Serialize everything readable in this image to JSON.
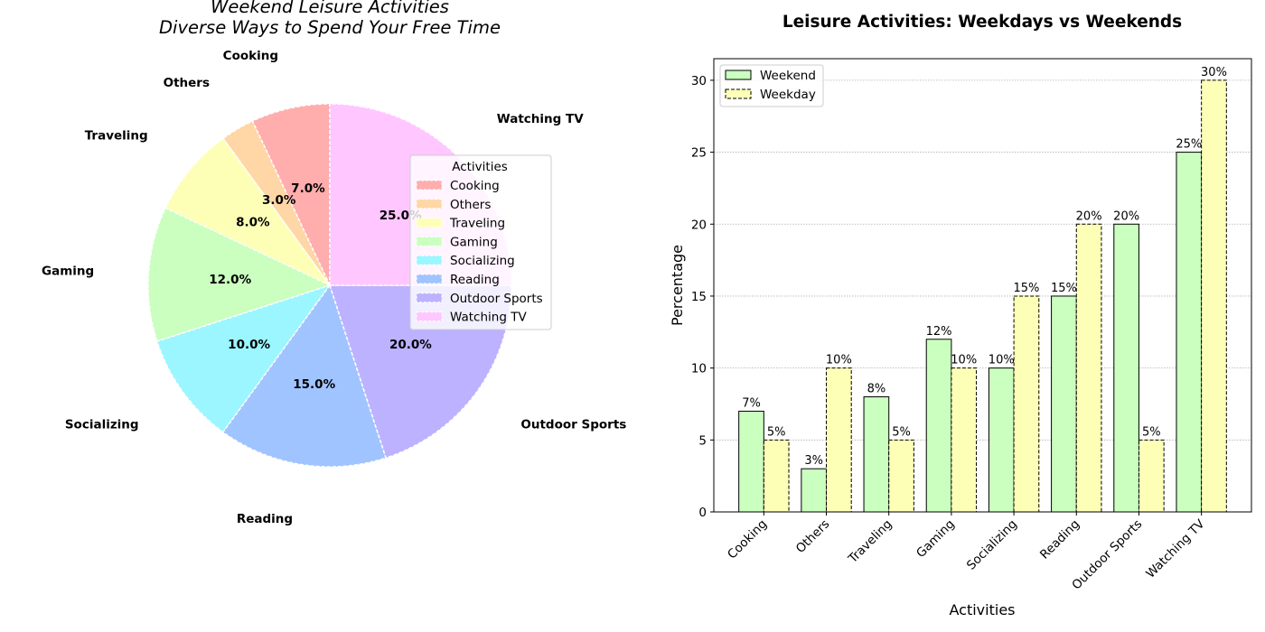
{
  "colors": {
    "Cooking": "#ffadad",
    "Others": "#ffd6a5",
    "Traveling": "#fdffb6",
    "Gaming": "#caffbf",
    "Socializing": "#9bf6ff",
    "Reading": "#a0c4ff",
    "Outdoor Sports": "#bdb2ff",
    "Watching TV": "#ffc6ff",
    "weekend_bar": "#caffbf",
    "weekday_bar": "#fdffb6"
  },
  "chart_data": [
    {
      "type": "pie",
      "title": "Weekend Leisure Activities\nDiverse Ways to Spend Your Free Time",
      "title_lines": [
        "Weekend Leisure Activities",
        "Diverse Ways to Spend Your Free Time"
      ],
      "categories": [
        "Cooking",
        "Others",
        "Traveling",
        "Gaming",
        "Socializing",
        "Reading",
        "Outdoor Sports",
        "Watching TV"
      ],
      "values": [
        7,
        3,
        8,
        12,
        10,
        15,
        20,
        25
      ],
      "value_labels": [
        "7.0%",
        "3.0%",
        "8.0%",
        "12.0%",
        "10.0%",
        "15.0%",
        "20.0%",
        "25.0%"
      ],
      "legend": {
        "title": "Activities",
        "placement": "right",
        "entries": [
          "Cooking",
          "Others",
          "Traveling",
          "Gaming",
          "Socializing",
          "Reading",
          "Outdoor Sports",
          "Watching TV"
        ]
      }
    },
    {
      "type": "bar",
      "title": "Leisure Activities: Weekdays vs Weekends",
      "xlabel": "Activities",
      "ylabel": "Percentage",
      "categories": [
        "Cooking",
        "Others",
        "Traveling",
        "Gaming",
        "Socializing",
        "Reading",
        "Outdoor Sports",
        "Watching TV"
      ],
      "series": [
        {
          "name": "Weekend",
          "values": [
            7,
            3,
            8,
            12,
            10,
            15,
            20,
            25
          ],
          "labels": [
            "7%",
            "3%",
            "8%",
            "12%",
            "10%",
            "15%",
            "20%",
            "25%"
          ]
        },
        {
          "name": "Weekday",
          "values": [
            5,
            10,
            5,
            10,
            15,
            20,
            5,
            30
          ],
          "labels": [
            "5%",
            "10%",
            "5%",
            "10%",
            "15%",
            "20%",
            "5%",
            "30%"
          ]
        }
      ],
      "ylim": [
        0,
        31.5
      ],
      "yticks": [
        0,
        5,
        10,
        15,
        20,
        25,
        30
      ],
      "grid": "y",
      "legend_placement": "top-left"
    }
  ]
}
